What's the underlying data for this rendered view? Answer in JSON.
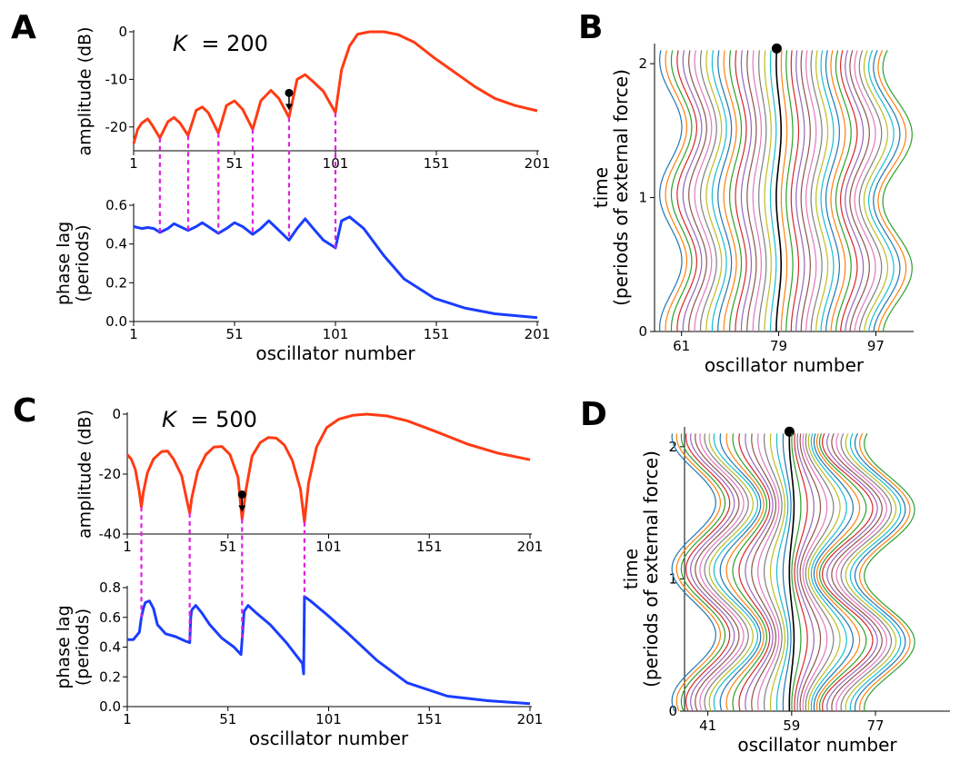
{
  "panels": {
    "A": {
      "letter": "A",
      "k_label": "= 200",
      "k_symbol": "K"
    },
    "B": {
      "letter": "B"
    },
    "C": {
      "letter": "C",
      "k_label": "= 500",
      "k_symbol": "K"
    },
    "D": {
      "letter": "D"
    }
  },
  "colors": {
    "amplitude": "#ff3b14",
    "phase": "#1a3dff",
    "guide": "#e020e0",
    "marked_oscillator": "#000000"
  },
  "chart_data": [
    {
      "id": "A-amplitude",
      "type": "line",
      "ylabel": "amplitude (dB)",
      "xlim": [
        1,
        201
      ],
      "ylim": [
        -25,
        0
      ],
      "x_ticks": [
        "1",
        "51",
        "101",
        "151",
        "201"
      ],
      "y_ticks": [
        "0",
        "-10",
        "-20"
      ],
      "marker_oscillator": 78,
      "minima_x": [
        14,
        28,
        43,
        60,
        78,
        101
      ],
      "x": [
        1,
        3,
        5,
        8,
        10,
        14,
        18,
        21,
        24,
        28,
        32,
        35,
        38,
        43,
        47,
        51,
        55,
        60,
        64,
        69,
        73,
        78,
        82,
        86,
        90,
        95,
        101,
        104,
        108,
        112,
        118,
        125,
        132,
        140,
        150,
        160,
        170,
        180,
        190,
        201
      ],
      "y": [
        -23.5,
        -20.5,
        -19.2,
        -18.3,
        -19.5,
        -22.3,
        -18.9,
        -18.0,
        -19.2,
        -21.8,
        -16.5,
        -15.8,
        -17.0,
        -21.3,
        -15.5,
        -14.5,
        -16.3,
        -20.5,
        -14.5,
        -12.3,
        -14.0,
        -18.0,
        -10.0,
        -9.0,
        -10.5,
        -12.5,
        -17.0,
        -8.0,
        -3.0,
        -0.5,
        0,
        0,
        -0.6,
        -2.2,
        -5.5,
        -8.5,
        -11.5,
        -14.0,
        -15.5,
        -16.6
      ]
    },
    {
      "id": "A-phase",
      "type": "line",
      "xlabel": "oscillator number",
      "ylabel": "phase lag\n(periods)",
      "xlim": [
        1,
        201
      ],
      "ylim": [
        0,
        0.6
      ],
      "x_ticks": [
        "1",
        "51",
        "101",
        "151",
        "201"
      ],
      "y_ticks": [
        "0.0",
        "0.2",
        "0.4",
        "0.6"
      ],
      "x": [
        1,
        5,
        8,
        11,
        14,
        18,
        21,
        24,
        28,
        32,
        35,
        38,
        43,
        47,
        51,
        55,
        60,
        64,
        68,
        73,
        78,
        82,
        86,
        90,
        95,
        101,
        104,
        108,
        115,
        125,
        135,
        150,
        165,
        180,
        201
      ],
      "y": [
        0.49,
        0.48,
        0.485,
        0.48,
        0.46,
        0.48,
        0.505,
        0.49,
        0.47,
        0.49,
        0.51,
        0.49,
        0.455,
        0.48,
        0.51,
        0.49,
        0.45,
        0.48,
        0.52,
        0.47,
        0.42,
        0.48,
        0.53,
        0.48,
        0.42,
        0.38,
        0.52,
        0.54,
        0.48,
        0.34,
        0.22,
        0.12,
        0.07,
        0.04,
        0.02
      ]
    },
    {
      "id": "B-trajectories",
      "type": "line",
      "xlabel": "oscillator number",
      "ylabel": "time\n(periods of external force)",
      "xlim": [
        56,
        104
      ],
      "ylim": [
        0,
        2.15
      ],
      "x_ticks": [
        "61",
        "79",
        "97"
      ],
      "y_ticks": [
        "0",
        "1",
        "2"
      ],
      "oscillator_first": 59,
      "oscillator_last": 101,
      "oscillator_step": 1,
      "marked_oscillator": 79,
      "wave_periods": 2,
      "wave_phase_offset": 0.75
    },
    {
      "id": "C-amplitude",
      "type": "line",
      "ylabel": "amplitude (dB)",
      "xlim": [
        1,
        201
      ],
      "ylim": [
        -40,
        0
      ],
      "x_ticks": [
        "1",
        "51",
        "101",
        "151",
        "201"
      ],
      "y_ticks": [
        "0",
        "-20",
        "-40"
      ],
      "marker_oscillator": 58,
      "minima_x": [
        8,
        32,
        58,
        89
      ],
      "x": [
        1,
        3,
        5,
        7,
        8,
        9,
        11,
        14,
        18,
        21,
        24,
        28,
        31,
        32,
        33,
        36,
        40,
        44,
        48,
        52,
        56,
        58,
        60,
        63,
        67,
        71,
        75,
        79,
        83,
        87,
        89,
        91,
        95,
        100,
        106,
        113,
        120,
        130,
        140,
        155,
        170,
        185,
        201
      ],
      "y": [
        -13.5,
        -15,
        -18.5,
        -26,
        -31,
        -26,
        -19.5,
        -15,
        -12.5,
        -12.3,
        -15,
        -20.5,
        -30,
        -33,
        -28,
        -19,
        -13.5,
        -11,
        -10.8,
        -13.5,
        -21,
        -35,
        -25,
        -14,
        -9.5,
        -7.8,
        -8.0,
        -10.3,
        -15.5,
        -25,
        -36,
        -23,
        -11,
        -4.5,
        -1.7,
        -0.4,
        0,
        -0.6,
        -2.2,
        -6.0,
        -10.0,
        -13.0,
        -15.2
      ]
    },
    {
      "id": "C-phase",
      "type": "line",
      "xlabel": "oscillator number",
      "ylabel": "phase lag\n(periods)",
      "xlim": [
        1,
        201
      ],
      "ylim": [
        0,
        0.8
      ],
      "x_ticks": [
        "1",
        "51",
        "101",
        "151",
        "201"
      ],
      "y_ticks": [
        "0.0",
        "0.2",
        "0.4",
        "0.6",
        "0.8"
      ],
      "x": [
        1,
        4,
        7,
        8,
        9,
        10,
        12,
        14,
        16,
        20,
        25,
        30,
        32,
        32.5,
        33,
        35,
        38,
        42,
        48,
        54,
        57.5,
        58,
        59,
        61,
        65,
        72,
        80,
        88,
        88.6,
        89,
        92,
        100,
        110,
        125,
        140,
        160,
        180,
        201
      ],
      "y": [
        0.45,
        0.45,
        0.5,
        0.6,
        0.66,
        0.7,
        0.71,
        0.66,
        0.55,
        0.49,
        0.47,
        0.44,
        0.43,
        0.6,
        0.65,
        0.68,
        0.63,
        0.55,
        0.46,
        0.4,
        0.35,
        0.45,
        0.64,
        0.68,
        0.63,
        0.55,
        0.43,
        0.29,
        0.22,
        0.74,
        0.71,
        0.62,
        0.5,
        0.31,
        0.16,
        0.07,
        0.04,
        0.02
      ]
    },
    {
      "id": "D-trajectories",
      "type": "line",
      "xlabel": "oscillator number",
      "ylabel": "time\n(periods of external force)",
      "xlim": [
        36,
        93
      ],
      "ylim": [
        0,
        2.15
      ],
      "x_ticks": [
        "41",
        "59",
        "77"
      ],
      "y_ticks": [
        "0",
        "1",
        "2"
      ],
      "oscillator_first": 38,
      "oscillator_last": 80,
      "oscillator_step": 1,
      "marked_oscillator": 59,
      "wave_periods": 2,
      "wave_phase_offset": 0.7
    }
  ]
}
